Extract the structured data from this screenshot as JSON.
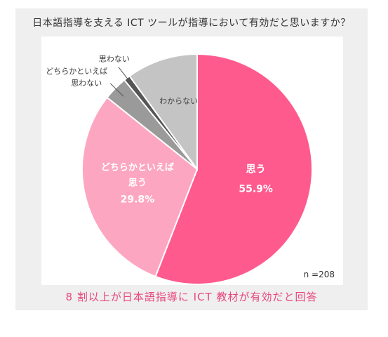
{
  "title": "日本語指導を支える ICT ツールが指導において有効だと思いますか？",
  "conclusion": "8 割以上が日本語指導に ICT 教材が有効だと回答",
  "sample_note": "n =208",
  "colors": {
    "accent": "#e8467f",
    "panel_bg": "#efefef",
    "card_bg": "#ffffff"
  },
  "chart_data": {
    "type": "pie",
    "title": "日本語指導を支える ICT ツールが指導において有効だと思いますか？",
    "annotation": "n =208",
    "start_angle_deg": 0,
    "direction": "clockwise",
    "slices": [
      {
        "label": "思う",
        "label_lines": [
          "思う"
        ],
        "value": 55.9,
        "value_text": "55.9%",
        "color": "#ff5a8e",
        "label_inside": true
      },
      {
        "label": "どちらかといえば思う",
        "label_lines": [
          "どちらかといえば",
          "思う"
        ],
        "value": 29.8,
        "value_text": "29.8%",
        "color": "#fda6c1",
        "label_inside": true
      },
      {
        "label": "どちらかといえば思わない",
        "label_lines": [
          "どちらかといえば",
          "思わない"
        ],
        "value": 3.4,
        "color": "#9a9a9a",
        "label_inside": false
      },
      {
        "label": "思わない",
        "label_lines": [
          "思わない"
        ],
        "value": 0.9,
        "color": "#555555",
        "label_inside": false
      },
      {
        "label": "わからない",
        "label_lines": [
          "わからない"
        ],
        "value": 10.0,
        "color": "#c4c4c4",
        "label_inside": true
      }
    ]
  }
}
